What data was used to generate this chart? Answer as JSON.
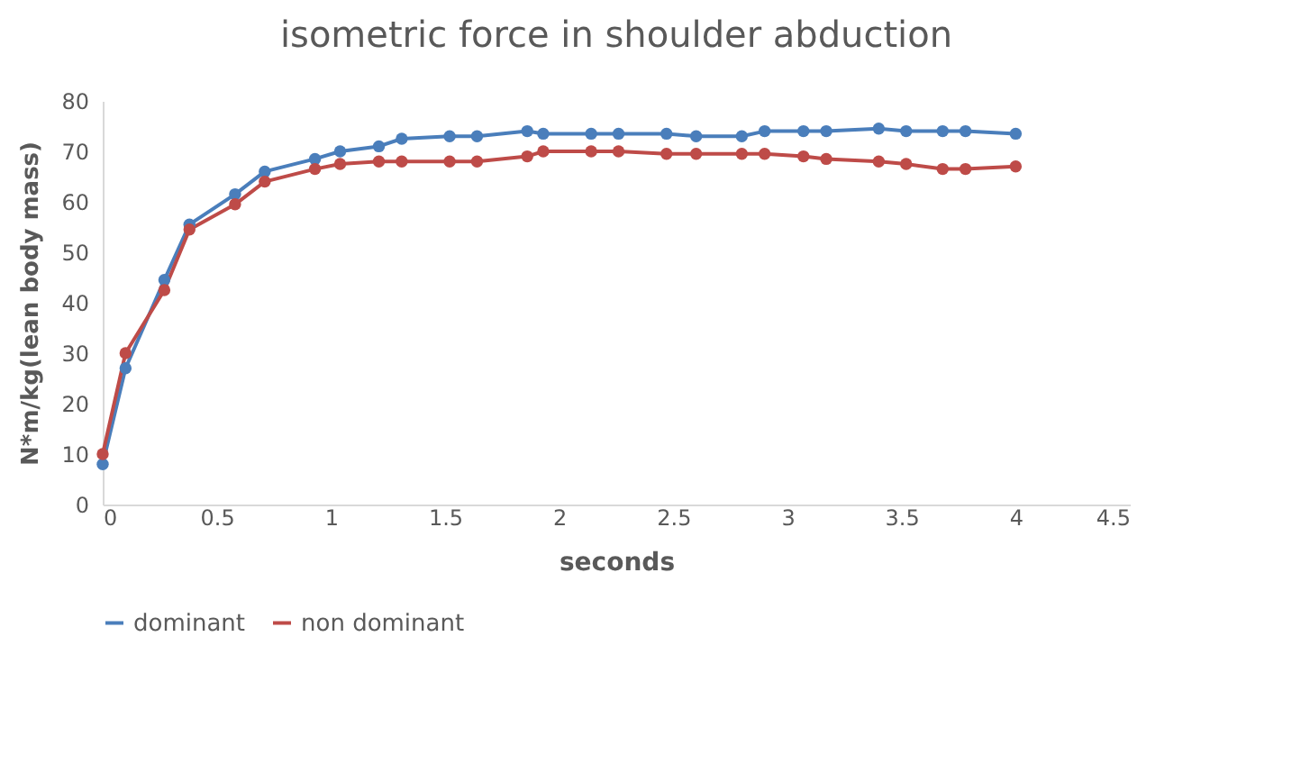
{
  "chart_data": {
    "type": "line",
    "title": "isometric force in shoulder  abduction",
    "xlabel": "seconds",
    "ylabel": "N*m/kg(lean body mass)",
    "x": [
      0,
      0.1,
      0.27,
      0.38,
      0.58,
      0.71,
      0.93,
      1.04,
      1.21,
      1.31,
      1.52,
      1.64,
      1.86,
      1.93,
      2.14,
      2.26,
      2.47,
      2.6,
      2.8,
      2.9,
      3.07,
      3.17,
      3.4,
      3.52,
      3.68,
      3.78,
      4.0
    ],
    "series": [
      {
        "name": "dominant",
        "color": "#4a7ebb",
        "values": [
          8,
          27,
          44.5,
          55.5,
          61.5,
          66,
          68.5,
          70,
          71,
          72.5,
          73,
          73,
          74,
          73.5,
          73.5,
          73.5,
          73.5,
          73,
          73,
          74,
          74,
          74,
          74.5,
          74,
          74,
          74,
          73.5
        ]
      },
      {
        "name": "non dominant",
        "color": "#be4b48",
        "values": [
          10,
          30,
          42.5,
          54.5,
          59.5,
          64,
          66.5,
          67.5,
          68,
          68,
          68,
          68,
          69,
          70,
          70,
          70,
          69.5,
          69.5,
          69.5,
          69.5,
          69,
          68.5,
          68,
          67.5,
          66.5,
          66.5,
          67
        ]
      }
    ],
    "xlim": [
      0,
      4.5
    ],
    "xticks": [
      0,
      0.5,
      1,
      1.5,
      2,
      2.5,
      3,
      3.5,
      4,
      4.5
    ],
    "ylim": [
      0,
      80
    ],
    "yticks": [
      0,
      10,
      20,
      30,
      40,
      50,
      60,
      70,
      80
    ],
    "grid": false,
    "legend": "bottom",
    "marker": "circle",
    "line_style": "solid"
  }
}
